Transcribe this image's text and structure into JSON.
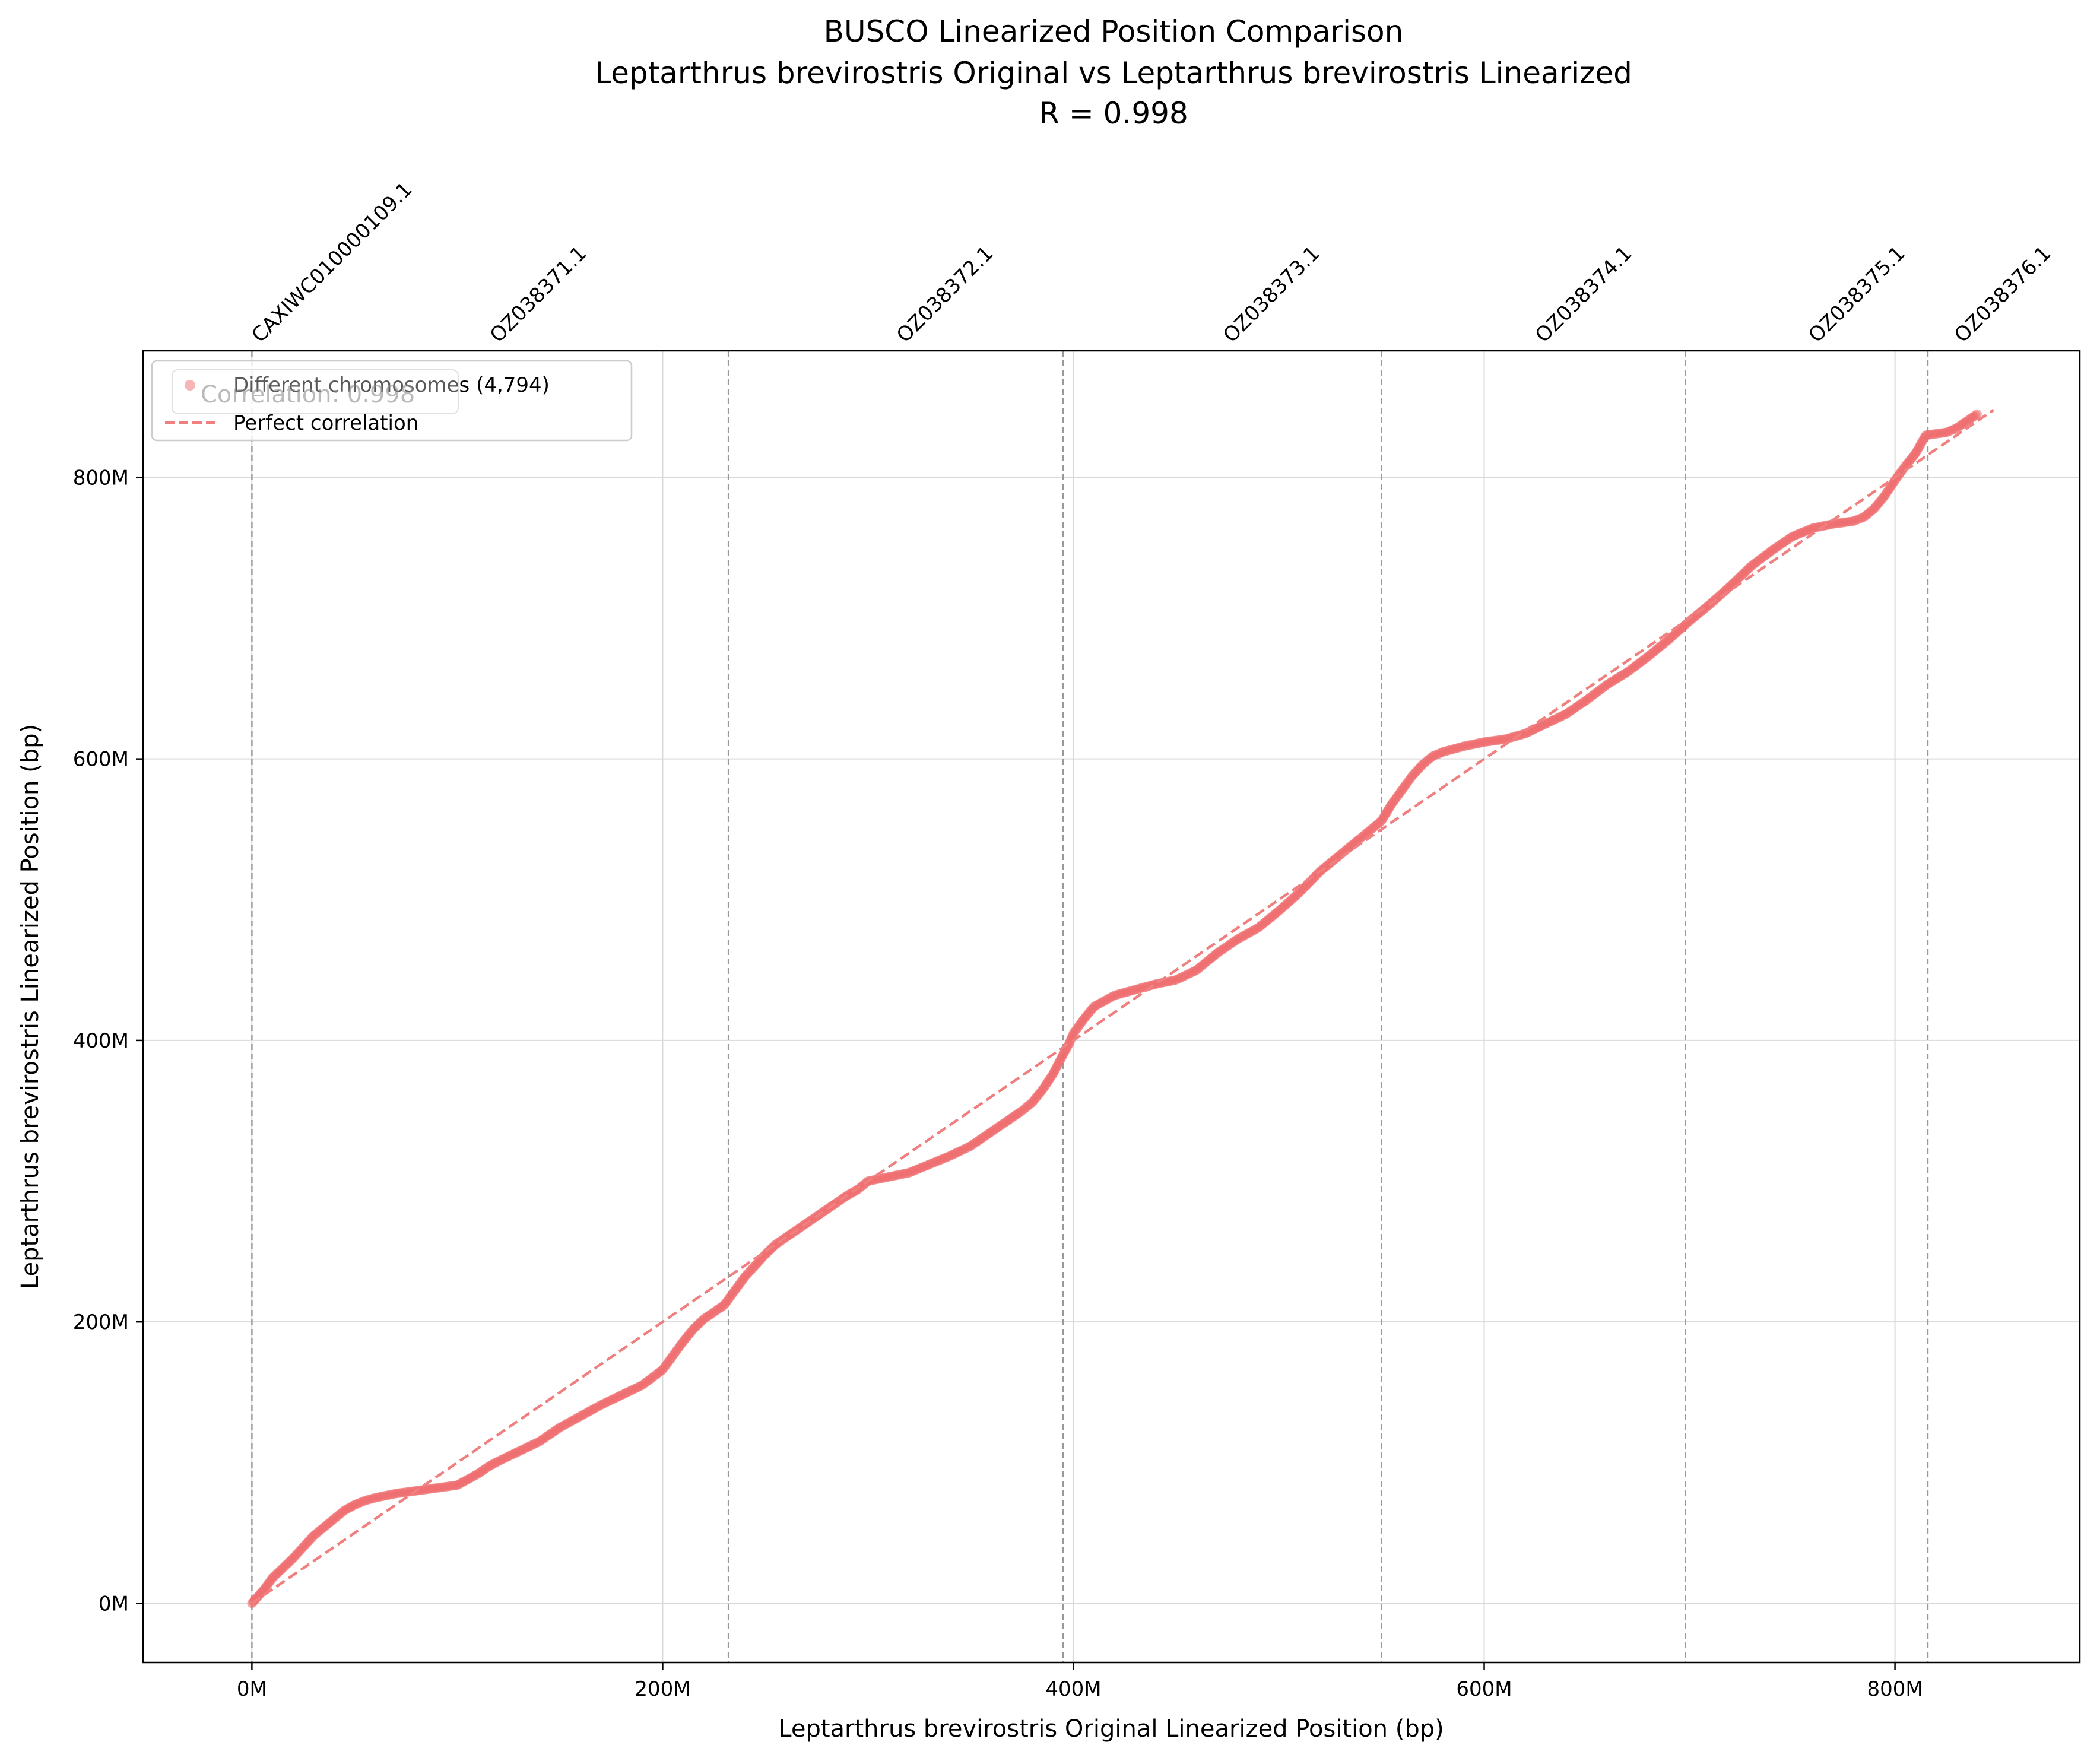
{
  "colors": {
    "points": "#ee6b6e",
    "perfect_line": "#f08080",
    "boundary": "#999999",
    "grid": "#d9d9d9"
  },
  "chart_data": {
    "type": "scatter",
    "title_lines": [
      "BUSCO Linearized Position Comparison",
      "Leptarthrus brevirostris Original vs Leptarthrus brevirostris Linearized",
      "R = 0.998"
    ],
    "xlabel": "Leptarthrus brevirostris Original Linearized Position (bp)",
    "ylabel": "Leptarthrus brevirostris Linearized Position (bp)",
    "xlim": [
      -53000000,
      890000000
    ],
    "ylim": [
      -42000000,
      890000000
    ],
    "x_ticks": [
      0,
      200000000,
      400000000,
      600000000,
      800000000
    ],
    "x_tick_labels": [
      "0M",
      "200M",
      "400M",
      "600M",
      "800M"
    ],
    "y_ticks": [
      0,
      200000000,
      400000000,
      600000000,
      800000000
    ],
    "y_tick_labels": [
      "0M",
      "200M",
      "400M",
      "600M",
      "800M"
    ],
    "grid": true,
    "legend_placement": "upper-left",
    "legend": [
      {
        "label": "Different chromosomes (4,794)",
        "kind": "marker"
      },
      {
        "label": "Perfect correlation",
        "kind": "dashed-line"
      }
    ],
    "correlation_text": "Correlation: 0.998",
    "chromosomes": [
      {
        "name": "CAXIWC010000109.1",
        "start": 0
      },
      {
        "name": "OZ038371.1",
        "start": 116000000
      },
      {
        "name": "OZ038372.1",
        "start": 314000000
      },
      {
        "name": "OZ038373.1",
        "start": 473000000
      },
      {
        "name": "OZ038374.1",
        "start": 625000000
      },
      {
        "name": "OZ038375.1",
        "start": 758000000
      },
      {
        "name": "OZ038376.1",
        "start": 829000000
      }
    ],
    "boundaries": [
      0,
      232000000,
      395000000,
      550000000,
      698000000,
      816000000
    ],
    "perfect_line": {
      "x": [
        0,
        848000000
      ],
      "y": [
        0,
        848000000
      ]
    },
    "series": [
      {
        "name": "Different chromosomes (4,794)",
        "x": [
          0,
          3000000,
          6000000,
          10000000,
          15000000,
          20000000,
          25000000,
          30000000,
          35000000,
          40000000,
          45000000,
          50000000,
          55000000,
          60000000,
          70000000,
          80000000,
          90000000,
          100000000,
          105000000,
          110000000,
          115000000,
          120000000,
          130000000,
          140000000,
          150000000,
          160000000,
          170000000,
          180000000,
          190000000,
          200000000,
          205000000,
          210000000,
          215000000,
          220000000,
          225000000,
          230000000,
          235000000,
          240000000,
          245000000,
          250000000,
          255000000,
          260000000,
          270000000,
          280000000,
          290000000,
          295000000,
          300000000,
          310000000,
          320000000,
          330000000,
          340000000,
          350000000,
          360000000,
          370000000,
          375000000,
          380000000,
          385000000,
          390000000,
          395000000,
          398000000,
          400000000,
          405000000,
          410000000,
          420000000,
          430000000,
          440000000,
          450000000,
          460000000,
          470000000,
          480000000,
          490000000,
          500000000,
          510000000,
          520000000,
          530000000,
          540000000,
          545000000,
          550000000,
          555000000,
          560000000,
          565000000,
          570000000,
          575000000,
          580000000,
          590000000,
          600000000,
          610000000,
          620000000,
          630000000,
          640000000,
          650000000,
          660000000,
          670000000,
          680000000,
          690000000,
          700000000,
          710000000,
          720000000,
          730000000,
          740000000,
          750000000,
          760000000,
          770000000,
          780000000,
          785000000,
          790000000,
          795000000,
          800000000,
          805000000,
          810000000,
          815000000,
          820000000,
          825000000,
          830000000,
          835000000,
          840000000
        ],
        "y": [
          0,
          5000000,
          10000000,
          18000000,
          25000000,
          32000000,
          40000000,
          48000000,
          54000000,
          60000000,
          66000000,
          70000000,
          73000000,
          75000000,
          78000000,
          80000000,
          82000000,
          84000000,
          88000000,
          92000000,
          97000000,
          101000000,
          108000000,
          115000000,
          125000000,
          133000000,
          141000000,
          148000000,
          155000000,
          166000000,
          176000000,
          186000000,
          195000000,
          202000000,
          207000000,
          212000000,
          222000000,
          232000000,
          240000000,
          248000000,
          255000000,
          260000000,
          270000000,
          280000000,
          290000000,
          294000000,
          300000000,
          303000000,
          306000000,
          312000000,
          318000000,
          325000000,
          335000000,
          345000000,
          350000000,
          356000000,
          365000000,
          376000000,
          390000000,
          398000000,
          405000000,
          415000000,
          424000000,
          432000000,
          436000000,
          440000000,
          443000000,
          450000000,
          462000000,
          472000000,
          480000000,
          492000000,
          505000000,
          520000000,
          532000000,
          544000000,
          550000000,
          556000000,
          568000000,
          578000000,
          588000000,
          596000000,
          602000000,
          605000000,
          609000000,
          612000000,
          614000000,
          618000000,
          625000000,
          632000000,
          642000000,
          653000000,
          662000000,
          673000000,
          685000000,
          698000000,
          710000000,
          723000000,
          737000000,
          748000000,
          758000000,
          764000000,
          767000000,
          769000000,
          772000000,
          778000000,
          787000000,
          798000000,
          808000000,
          817000000,
          830000000,
          831000000,
          832000000,
          835000000,
          840000000,
          845000000
        ]
      }
    ]
  }
}
